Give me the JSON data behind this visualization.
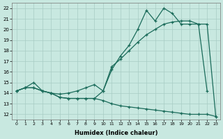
{
  "xlabel": "Humidex (Indice chaleur)",
  "bg_color": "#c8e8e0",
  "grid_color": "#a8ccc4",
  "line_color": "#1a6b5a",
  "xlim": [
    -0.5,
    23.5
  ],
  "ylim": [
    11.5,
    22.5
  ],
  "xticks": [
    0,
    1,
    2,
    3,
    4,
    5,
    6,
    7,
    8,
    9,
    10,
    11,
    12,
    13,
    14,
    15,
    16,
    17,
    18,
    19,
    20,
    21,
    22,
    23
  ],
  "yticks": [
    12,
    13,
    14,
    15,
    16,
    17,
    18,
    19,
    20,
    21,
    22
  ],
  "curve_jagged_x": [
    0,
    1,
    2,
    3,
    4,
    5,
    6,
    7,
    8,
    9,
    10,
    11,
    12,
    13,
    14,
    15,
    16,
    17,
    18,
    19,
    20,
    21,
    22
  ],
  "curve_jagged_y": [
    14.2,
    14.5,
    14.5,
    14.2,
    14.0,
    13.6,
    13.5,
    13.5,
    13.5,
    13.5,
    14.2,
    16.2,
    17.5,
    18.5,
    20.0,
    21.8,
    20.8,
    22.0,
    21.5,
    20.5,
    20.5,
    20.5,
    14.2
  ],
  "curve_smooth_x": [
    0,
    1,
    2,
    3,
    4,
    5,
    6,
    7,
    8,
    9,
    10,
    11,
    12,
    13,
    14,
    15,
    16,
    17,
    18,
    19,
    20,
    21,
    22,
    23
  ],
  "curve_smooth_y": [
    14.2,
    14.5,
    15.0,
    14.2,
    14.0,
    13.9,
    14.0,
    14.2,
    14.5,
    14.8,
    14.2,
    16.5,
    17.2,
    18.0,
    18.8,
    19.5,
    20.0,
    20.5,
    20.7,
    20.8,
    20.8,
    20.5,
    20.5,
    11.8
  ],
  "curve_lower_x": [
    0,
    1,
    2,
    3,
    4,
    5,
    6,
    7,
    8,
    9,
    10,
    11,
    12,
    13,
    14,
    15,
    16,
    17,
    18,
    19,
    20,
    21,
    22,
    23
  ],
  "curve_lower_y": [
    14.2,
    14.5,
    14.5,
    14.2,
    14.0,
    13.6,
    13.5,
    13.5,
    13.5,
    13.5,
    13.3,
    13.0,
    12.8,
    12.7,
    12.6,
    12.5,
    12.4,
    12.3,
    12.2,
    12.1,
    12.0,
    12.0,
    12.0,
    11.8
  ]
}
